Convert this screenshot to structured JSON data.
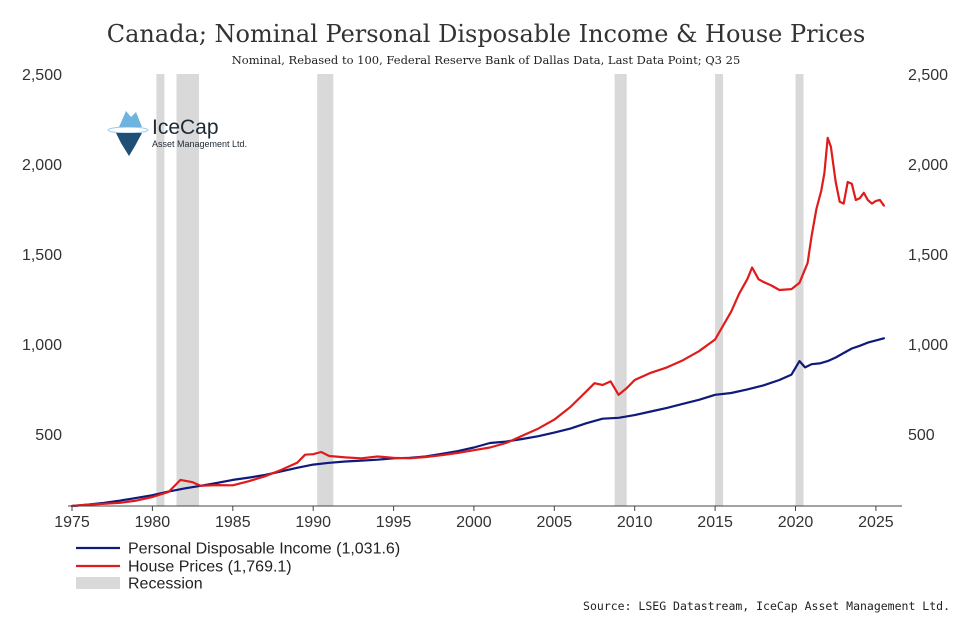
{
  "chart_data": {
    "type": "line",
    "title": "Canada; Nominal Personal Disposable Income & House Prices",
    "subtitle": "Nominal, Rebased to 100, Federal Reserve Bank of Dallas Data, Last Data Point; Q3 25",
    "x_range": [
      1975,
      2026.5
    ],
    "y_range": [
      100,
      2500
    ],
    "x_ticks": [
      1975,
      1980,
      1985,
      1990,
      1995,
      2000,
      2005,
      2010,
      2015,
      2020,
      2025
    ],
    "y_ticks": [
      500,
      1000,
      1500,
      2000,
      2500
    ],
    "y_tick_labels": [
      "500",
      "1,000",
      "1,500",
      "2,000",
      "2,500"
    ],
    "recessions": [
      [
        1980.25,
        1980.75
      ],
      [
        1981.5,
        1982.9
      ],
      [
        1990.25,
        1991.25
      ],
      [
        2008.75,
        2009.5
      ],
      [
        2015.0,
        2015.5
      ],
      [
        2020.0,
        2020.5
      ]
    ],
    "series": [
      {
        "name": "Personal Disposable Income (1,031.6)",
        "color": "#0f1a7a",
        "points": [
          [
            1975,
            100
          ],
          [
            1976,
            108
          ],
          [
            1977,
            118
          ],
          [
            1978,
            130
          ],
          [
            1979,
            145
          ],
          [
            1980,
            160
          ],
          [
            1981,
            180
          ],
          [
            1982,
            198
          ],
          [
            1983,
            212
          ],
          [
            1984,
            228
          ],
          [
            1985,
            245
          ],
          [
            1986,
            258
          ],
          [
            1987,
            272
          ],
          [
            1988,
            292
          ],
          [
            1989,
            312
          ],
          [
            1990,
            330
          ],
          [
            1991,
            340
          ],
          [
            1992,
            347
          ],
          [
            1993,
            352
          ],
          [
            1994,
            357
          ],
          [
            1995,
            365
          ],
          [
            1996,
            368
          ],
          [
            1997,
            375
          ],
          [
            1998,
            390
          ],
          [
            1999,
            405
          ],
          [
            2000,
            425
          ],
          [
            2001,
            450
          ],
          [
            2002,
            458
          ],
          [
            2003,
            472
          ],
          [
            2004,
            488
          ],
          [
            2005,
            508
          ],
          [
            2006,
            530
          ],
          [
            2007,
            560
          ],
          [
            2008,
            585
          ],
          [
            2009,
            590
          ],
          [
            2010,
            605
          ],
          [
            2011,
            625
          ],
          [
            2012,
            645
          ],
          [
            2013,
            668
          ],
          [
            2014,
            690
          ],
          [
            2015,
            718
          ],
          [
            2016,
            728
          ],
          [
            2017,
            748
          ],
          [
            2018,
            770
          ],
          [
            2019,
            800
          ],
          [
            2019.75,
            830
          ],
          [
            2020.25,
            905
          ],
          [
            2020.6,
            870
          ],
          [
            2021,
            888
          ],
          [
            2021.5,
            892
          ],
          [
            2022,
            905
          ],
          [
            2022.5,
            925
          ],
          [
            2023,
            950
          ],
          [
            2023.5,
            975
          ],
          [
            2024,
            990
          ],
          [
            2024.5,
            1008
          ],
          [
            2025,
            1020
          ],
          [
            2025.5,
            1031.6
          ]
        ]
      },
      {
        "name": "House Prices (1,769.1)",
        "color": "#e01b1b",
        "points": [
          [
            1975,
            100
          ],
          [
            1976,
            108
          ],
          [
            1977,
            112
          ],
          [
            1978,
            118
          ],
          [
            1979,
            130
          ],
          [
            1980,
            150
          ],
          [
            1981,
            178
          ],
          [
            1981.75,
            245
          ],
          [
            1982.5,
            232
          ],
          [
            1983,
            212
          ],
          [
            1984,
            216
          ],
          [
            1985,
            215
          ],
          [
            1986,
            238
          ],
          [
            1987,
            265
          ],
          [
            1988,
            300
          ],
          [
            1989,
            340
          ],
          [
            1989.5,
            385
          ],
          [
            1990,
            388
          ],
          [
            1990.5,
            400
          ],
          [
            1991,
            378
          ],
          [
            1992,
            370
          ],
          [
            1993,
            365
          ],
          [
            1994,
            375
          ],
          [
            1995,
            368
          ],
          [
            1996,
            365
          ],
          [
            1997,
            372
          ],
          [
            1998,
            382
          ],
          [
            1999,
            395
          ],
          [
            2000,
            410
          ],
          [
            2001,
            425
          ],
          [
            2002,
            450
          ],
          [
            2003,
            490
          ],
          [
            2004,
            530
          ],
          [
            2005,
            580
          ],
          [
            2006,
            650
          ],
          [
            2007,
            738
          ],
          [
            2007.5,
            782
          ],
          [
            2008,
            772
          ],
          [
            2008.5,
            792
          ],
          [
            2009,
            718
          ],
          [
            2009.5,
            755
          ],
          [
            2010,
            800
          ],
          [
            2011,
            840
          ],
          [
            2012,
            870
          ],
          [
            2013,
            910
          ],
          [
            2014,
            960
          ],
          [
            2015,
            1025
          ],
          [
            2016,
            1180
          ],
          [
            2016.5,
            1280
          ],
          [
            2017,
            1360
          ],
          [
            2017.3,
            1425
          ],
          [
            2017.7,
            1360
          ],
          [
            2018,
            1345
          ],
          [
            2018.5,
            1325
          ],
          [
            2019,
            1300
          ],
          [
            2019.75,
            1305
          ],
          [
            2020.25,
            1340
          ],
          [
            2020.75,
            1450
          ],
          [
            2021,
            1600
          ],
          [
            2021.3,
            1750
          ],
          [
            2021.6,
            1850
          ],
          [
            2021.8,
            1950
          ],
          [
            2022,
            2145
          ],
          [
            2022.2,
            2095
          ],
          [
            2022.5,
            1900
          ],
          [
            2022.75,
            1790
          ],
          [
            2023,
            1780
          ],
          [
            2023.25,
            1900
          ],
          [
            2023.5,
            1890
          ],
          [
            2023.75,
            1800
          ],
          [
            2024,
            1810
          ],
          [
            2024.25,
            1840
          ],
          [
            2024.5,
            1800
          ],
          [
            2024.75,
            1780
          ],
          [
            2025,
            1795
          ],
          [
            2025.25,
            1800
          ],
          [
            2025.5,
            1769.1
          ]
        ]
      }
    ],
    "legend": [
      {
        "label": "Personal Disposable Income (1,031.6)",
        "kind": "line",
        "color": "#0f1a7a"
      },
      {
        "label": "House Prices (1,769.1)",
        "kind": "line",
        "color": "#e01b1b"
      },
      {
        "label": "Recession",
        "kind": "box",
        "color": "#d9d9d9"
      }
    ],
    "legend_position": "bottom-left",
    "grid": false
  },
  "logo": {
    "name": "IceCap",
    "tagline": "Asset Management Ltd."
  },
  "source": "Source: LSEG Datastream, IceCap Asset Management Ltd."
}
